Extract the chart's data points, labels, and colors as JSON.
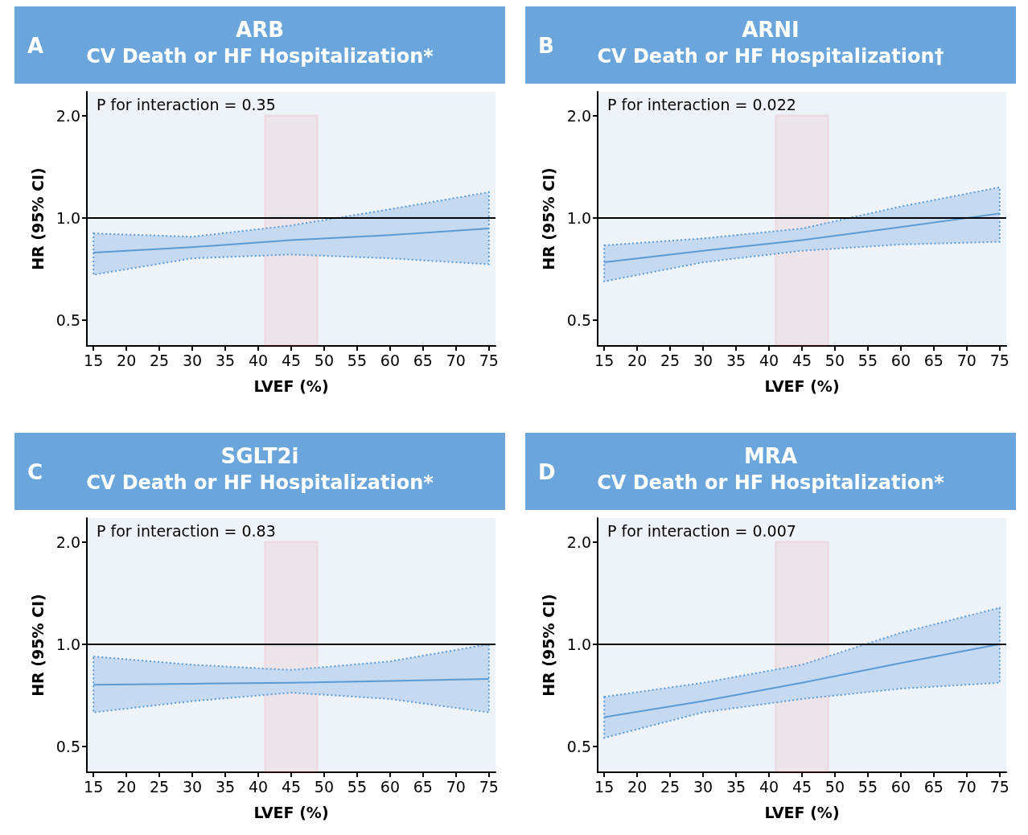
{
  "chart_data": [
    {
      "type": "line",
      "title": "ARB",
      "subtitle": "CV Death or HF Hospitalization*",
      "xlabel": "LVEF (%)",
      "ylabel": "HR (95% CI)",
      "annotations": [
        "A",
        "P for interaction = 0.35"
      ],
      "x": [
        15,
        30,
        45,
        60,
        75
      ],
      "series": [
        {
          "color": "#5b9bd5",
          "values": [
            0.79,
            0.82,
            0.86,
            0.89,
            0.93
          ],
          "lower": [
            0.68,
            0.76,
            0.78,
            0.76,
            0.73
          ],
          "upper": [
            0.9,
            0.88,
            0.95,
            1.06,
            1.19
          ]
        }
      ],
      "log": "y",
      "xlim": [
        14,
        76
      ],
      "ylim": [
        0.42,
        2.35
      ],
      "xticks": [
        15,
        20,
        25,
        30,
        35,
        40,
        45,
        50,
        55,
        60,
        65,
        70,
        75
      ],
      "yticks": [
        {
          "value": 0.5,
          "label": "0.5"
        },
        {
          "value": 1,
          "label": "1.0"
        },
        {
          "value": 2,
          "label": "2.0"
        }
      ],
      "ref_lines": [
        {
          "axis": "y",
          "value": 1,
          "color": "#000000"
        }
      ],
      "bands": [
        {
          "axis": "x",
          "from": 41,
          "to": 49,
          "color": "#e8413c"
        }
      ],
      "grid": false,
      "marker": "none",
      "line_style": "solid"
    },
    {
      "type": "line",
      "title": "ARNI",
      "subtitle": "CV Death or HF Hospitalization†",
      "xlabel": "LVEF (%)",
      "ylabel": "HR (95% CI)",
      "annotations": [
        "B",
        "P for interaction = 0.022"
      ],
      "x": [
        15,
        30,
        45,
        60,
        75
      ],
      "series": [
        {
          "color": "#5b9bd5",
          "values": [
            0.74,
            0.8,
            0.86,
            0.94,
            1.03
          ],
          "lower": [
            0.65,
            0.74,
            0.8,
            0.835,
            0.85
          ],
          "upper": [
            0.83,
            0.87,
            0.93,
            1.08,
            1.23
          ]
        }
      ],
      "log": "y",
      "xlim": [
        14,
        76
      ],
      "ylim": [
        0.42,
        2.35
      ],
      "xticks": [
        15,
        20,
        25,
        30,
        35,
        40,
        45,
        50,
        55,
        60,
        65,
        70,
        75
      ],
      "yticks": [
        {
          "value": 0.5,
          "label": "0.5"
        },
        {
          "value": 1,
          "label": "1.0"
        },
        {
          "value": 2,
          "label": "2.0"
        }
      ],
      "ref_lines": [
        {
          "axis": "y",
          "value": 1,
          "color": "#000000"
        }
      ],
      "bands": [
        {
          "axis": "x",
          "from": 41,
          "to": 49,
          "color": "#e8413c"
        }
      ],
      "grid": false,
      "marker": "none",
      "line_style": "solid"
    },
    {
      "type": "line",
      "title": "SGLT2i",
      "subtitle": "CV Death or HF Hospitalization*",
      "xlabel": "LVEF (%)",
      "ylabel": "HR (95% CI)",
      "annotations": [
        "C",
        "P for interaction = 0.83"
      ],
      "x": [
        15,
        30,
        45,
        60,
        75
      ],
      "series": [
        {
          "color": "#5b9bd5",
          "values": [
            0.76,
            0.765,
            0.77,
            0.78,
            0.79
          ],
          "lower": [
            0.63,
            0.68,
            0.72,
            0.69,
            0.63
          ],
          "upper": [
            0.92,
            0.87,
            0.84,
            0.89,
            1.0
          ]
        }
      ],
      "log": "y",
      "xlim": [
        14,
        76
      ],
      "ylim": [
        0.42,
        2.35
      ],
      "xticks": [
        15,
        20,
        25,
        30,
        35,
        40,
        45,
        50,
        55,
        60,
        65,
        70,
        75
      ],
      "yticks": [
        {
          "value": 0.5,
          "label": "0.5"
        },
        {
          "value": 1,
          "label": "1.0"
        },
        {
          "value": 2,
          "label": "2.0"
        }
      ],
      "ref_lines": [
        {
          "axis": "y",
          "value": 1,
          "color": "#000000"
        }
      ],
      "bands": [
        {
          "axis": "x",
          "from": 41,
          "to": 49,
          "color": "#e8413c"
        }
      ],
      "grid": false,
      "marker": "none",
      "line_style": "solid"
    },
    {
      "type": "line",
      "title": "MRA",
      "subtitle": "CV Death or HF Hospitalization*",
      "xlabel": "LVEF (%)",
      "ylabel": "HR (95% CI)",
      "annotations": [
        "D",
        "P for interaction = 0.007"
      ],
      "x": [
        15,
        30,
        45,
        60,
        75
      ],
      "series": [
        {
          "color": "#5b9bd5",
          "values": [
            0.61,
            0.68,
            0.77,
            0.88,
            1.0
          ],
          "lower": [
            0.53,
            0.63,
            0.69,
            0.74,
            0.77
          ],
          "upper": [
            0.7,
            0.77,
            0.87,
            1.08,
            1.28
          ]
        }
      ],
      "log": "y",
      "xlim": [
        14,
        76
      ],
      "ylim": [
        0.42,
        2.35
      ],
      "xticks": [
        15,
        20,
        25,
        30,
        35,
        40,
        45,
        50,
        55,
        60,
        65,
        70,
        75
      ],
      "yticks": [
        {
          "value": 0.5,
          "label": "0.5"
        },
        {
          "value": 1,
          "label": "1.0"
        },
        {
          "value": 2,
          "label": "2.0"
        }
      ],
      "ref_lines": [
        {
          "axis": "y",
          "value": 1,
          "color": "#000000"
        }
      ],
      "bands": [
        {
          "axis": "x",
          "from": 41,
          "to": 49,
          "color": "#e8413c"
        }
      ],
      "grid": false,
      "marker": "none",
      "line_style": "solid"
    }
  ]
}
